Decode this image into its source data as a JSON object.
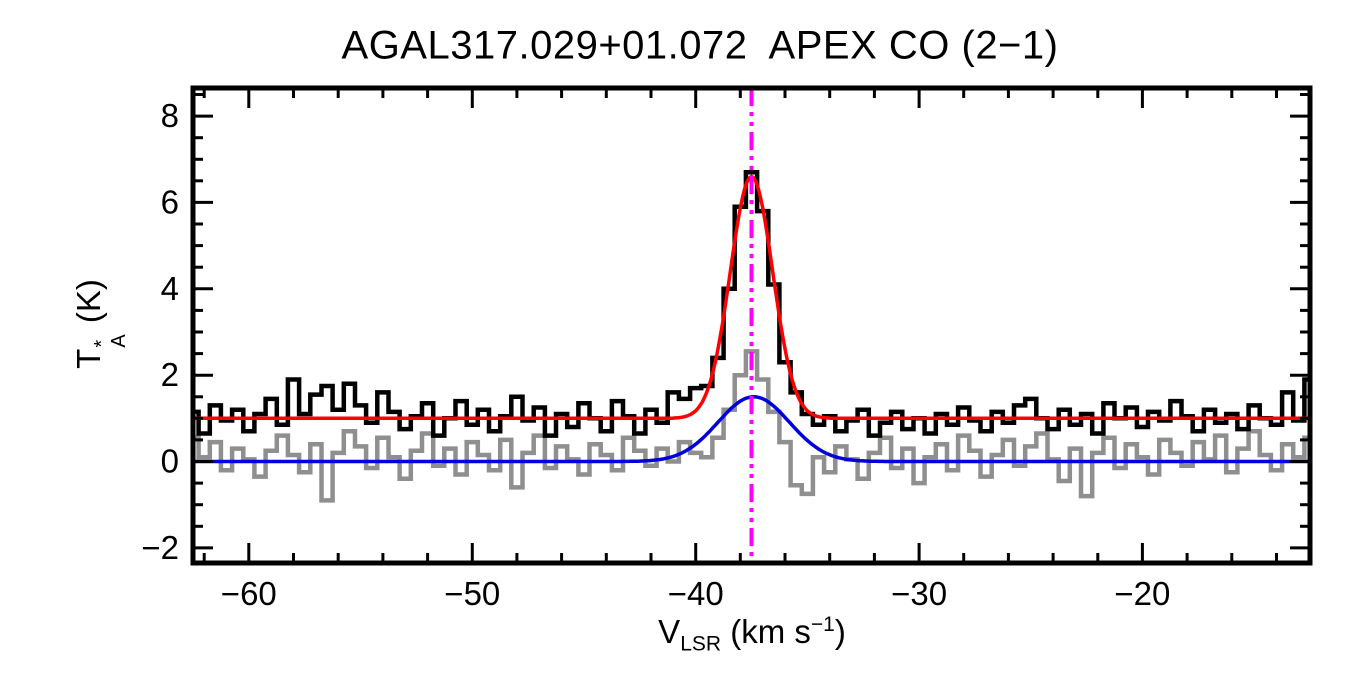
{
  "chart_data": {
    "type": "line",
    "title": "AGAL317.029+01.072  APEX CO (2−1)",
    "xlabel": "V_LSR (km s^−1)",
    "ylabel": "T_A^* (K)",
    "xlabel_parts": {
      "symbol": "V",
      "subscript": "LSR",
      "unit_open": " (km s",
      "exponent": "−1",
      "unit_close": ")"
    },
    "ylabel_parts": {
      "symbol": "T",
      "superscript": "*",
      "subscript": "A",
      "unit": " (K)"
    },
    "xlim": [
      -62.5,
      -12.5
    ],
    "ylim": [
      -2.35,
      8.65
    ],
    "x_ticks": [
      {
        "value": -60,
        "label": "−60"
      },
      {
        "value": -50,
        "label": "−50"
      },
      {
        "value": -40,
        "label": "−40"
      },
      {
        "value": -30,
        "label": "−30"
      },
      {
        "value": -20,
        "label": "−20"
      }
    ],
    "y_ticks": [
      {
        "value": -2,
        "label": "−2"
      },
      {
        "value": 0,
        "label": "0"
      },
      {
        "value": 2,
        "label": "2"
      },
      {
        "value": 4,
        "label": "4"
      },
      {
        "value": 6,
        "label": "6"
      },
      {
        "value": 8,
        "label": "8"
      }
    ],
    "x_minor_step": 2,
    "y_minor_step": 0.5,
    "grid": false,
    "legend": null,
    "background": "#ffffff",
    "frame_color": "#000000",
    "vline": {
      "x": -37.5,
      "color": "#ff00ff",
      "style": "dash-dot-dot",
      "line_width": 4
    },
    "series": [
      {
        "name": "gray-spectrum",
        "role": "histogram",
        "color": "#8f8f8f",
        "line_width": 4.5,
        "x_start": -62.5,
        "dx": 0.5,
        "baseline": 0.0,
        "peak": 2.55,
        "peak_velocity": -37.5,
        "values": [
          0.55,
          0.1,
          0.45,
          -0.2,
          0.3,
          0.05,
          -0.35,
          0.25,
          0.6,
          0.15,
          -0.25,
          0.4,
          -0.9,
          0.2,
          0.7,
          0.35,
          -0.15,
          0.55,
          0.1,
          -0.4,
          0.25,
          0.65,
          -0.1,
          0.3,
          -0.3,
          0.45,
          0.15,
          -0.2,
          0.5,
          -0.6,
          0.2,
          0.6,
          -0.15,
          0.35,
          0.05,
          -0.3,
          0.4,
          0.15,
          -0.2,
          0.55,
          0.25,
          -0.1,
          0.3,
          0.0,
          0.45,
          0.2,
          0.1,
          0.55,
          1.2,
          2.0,
          2.55,
          1.9,
          1.15,
          0.45,
          -0.55,
          -0.75,
          0.1,
          -0.25,
          0.35,
          0.05,
          -0.4,
          0.2,
          0.55,
          -0.15,
          0.3,
          -0.5,
          0.1,
          0.4,
          -0.2,
          0.6,
          0.25,
          -0.35,
          0.15,
          0.5,
          -0.1,
          0.35,
          0.65,
          0.05,
          -0.45,
          0.3,
          -0.8,
          0.2,
          0.55,
          -0.15,
          0.4,
          0.1,
          -0.3,
          0.5,
          0.2,
          -0.1,
          0.45,
          0.05,
          0.6,
          -0.25,
          0.3,
          0.7,
          0.15,
          -0.2,
          0.4,
          0.1,
          0.55
        ]
      },
      {
        "name": "black-spectrum-offset",
        "role": "histogram",
        "color": "#000000",
        "line_width": 4.5,
        "x_start": -62.5,
        "dx": 0.5,
        "baseline": 1.0,
        "peak": 6.7,
        "peak_velocity": -37.5,
        "values": [
          1.15,
          0.65,
          1.3,
          0.95,
          1.2,
          0.7,
          1.1,
          1.45,
          0.85,
          1.9,
          1.1,
          1.55,
          1.75,
          1.2,
          1.8,
          1.3,
          0.9,
          1.6,
          1.15,
          0.75,
          1.05,
          1.35,
          0.6,
          1.0,
          1.4,
          0.85,
          1.2,
          0.7,
          1.05,
          1.5,
          0.95,
          1.25,
          0.6,
          1.1,
          0.8,
          1.35,
          1.0,
          0.7,
          1.4,
          1.05,
          0.65,
          1.2,
          0.9,
          1.6,
          1.45,
          1.7,
          1.75,
          2.4,
          4.0,
          5.9,
          6.7,
          5.8,
          4.1,
          2.3,
          1.6,
          1.1,
          0.85,
          1.05,
          0.7,
          0.95,
          1.2,
          0.6,
          0.9,
          1.15,
          0.75,
          1.0,
          0.65,
          1.1,
          0.85,
          1.25,
          0.95,
          0.7,
          1.15,
          0.9,
          1.3,
          1.45,
          1.0,
          0.75,
          1.2,
          0.85,
          1.1,
          0.65,
          1.35,
          1.0,
          1.25,
          0.8,
          1.15,
          0.95,
          1.4,
          1.05,
          0.7,
          1.2,
          0.9,
          1.1,
          0.75,
          1.3,
          1.0,
          0.85,
          1.6,
          0.95,
          1.9
        ]
      },
      {
        "name": "blue-gaussian-fit",
        "role": "gaussian",
        "color": "#0000dd",
        "line_width": 3.5,
        "baseline": 0.0,
        "amplitude": 1.5,
        "center": -37.4,
        "sigma": 1.6
      },
      {
        "name": "red-gaussian-fit",
        "role": "gaussian",
        "color": "#ff0000",
        "line_width": 3.5,
        "baseline": 1.0,
        "amplitude": 5.6,
        "center": -37.5,
        "sigma": 0.95
      }
    ]
  }
}
